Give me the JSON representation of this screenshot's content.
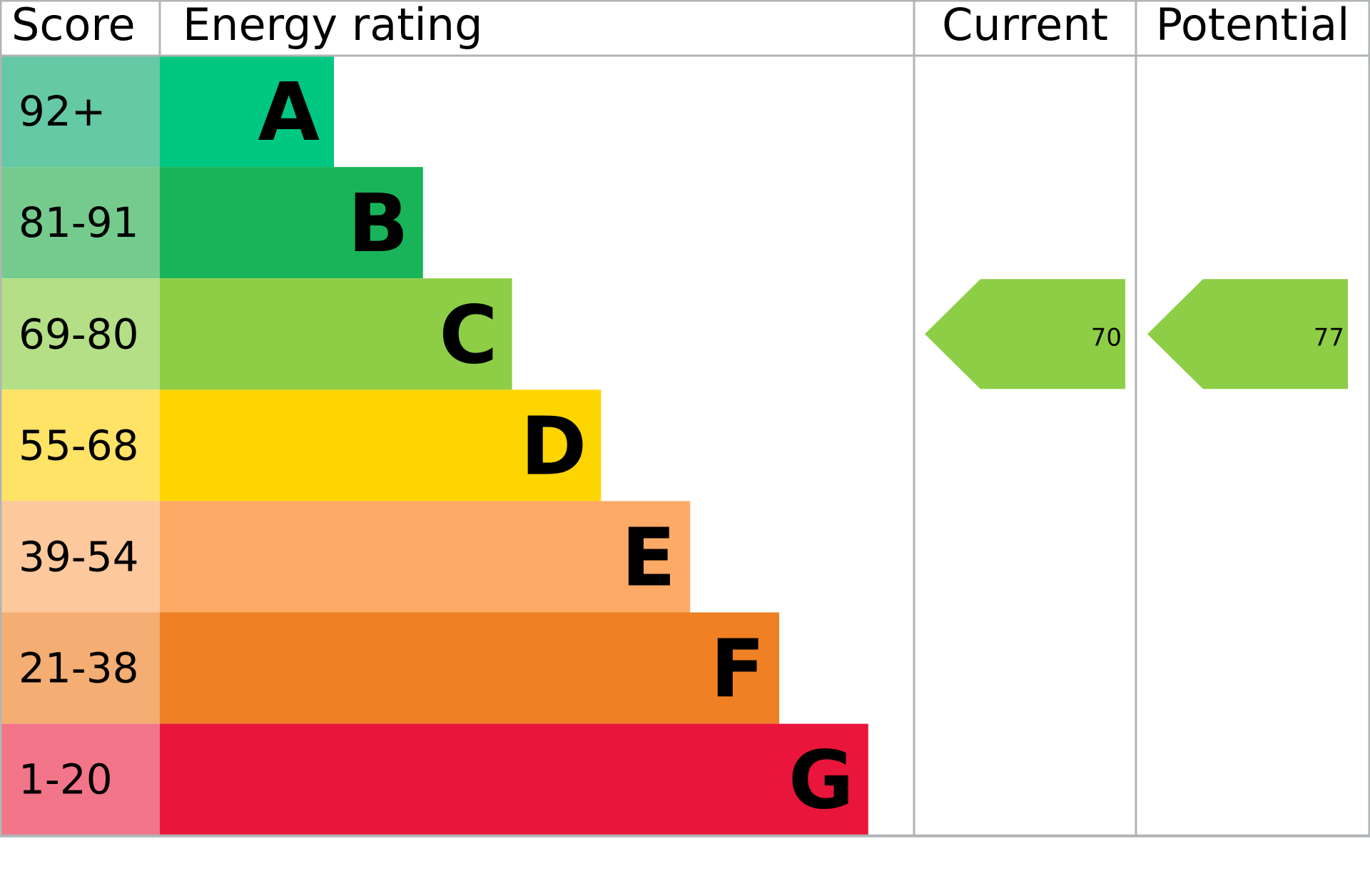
{
  "chart_data": {
    "type": "table",
    "headers": {
      "score": "Score",
      "rating": "Energy rating",
      "current": "Current",
      "potential": "Potential"
    },
    "bands": [
      {
        "letter": "A",
        "range": "92+",
        "color": "#00c781",
        "light": "#64c9a4"
      },
      {
        "letter": "B",
        "range": "81-91",
        "color": "#19b459",
        "light": "#75cb8d"
      },
      {
        "letter": "C",
        "range": "69-80",
        "color": "#8dce46",
        "light": "#b4df86"
      },
      {
        "letter": "D",
        "range": "55-68",
        "color": "#ffd500",
        "light": "#ffe367"
      },
      {
        "letter": "E",
        "range": "39-54",
        "color": "#fcaa65",
        "light": "#fdc89c"
      },
      {
        "letter": "F",
        "range": "21-38",
        "color": "#ef8023",
        "light": "#f4ad73"
      },
      {
        "letter": "G",
        "range": "1-20",
        "color": "#e9153b",
        "light": "#f27589"
      }
    ],
    "current": {
      "value": "70",
      "band": "C"
    },
    "potential": {
      "value": "77",
      "band": "C"
    },
    "grid_color": "#b1b4b6"
  }
}
